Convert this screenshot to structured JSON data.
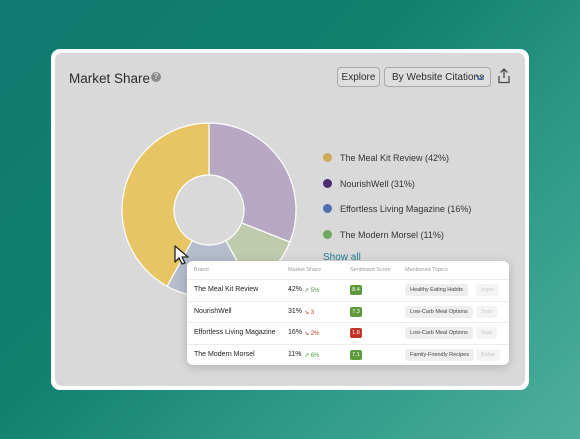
{
  "card": {
    "title": "Market Share",
    "explore_label": "Explore",
    "dropdown_label": "By Website Citations"
  },
  "chart_data": {
    "type": "pie",
    "categories": [
      "The Meal Kit Review",
      "NourishWell",
      "Effortless Living Magazine",
      "The Modern Morsel"
    ],
    "values": [
      42,
      31,
      16,
      11
    ],
    "colors": [
      "#e7c565",
      "#b7a9c4",
      "#b5bccc",
      "#bfcbad"
    ],
    "legend_placement": "right"
  },
  "legend": {
    "items": [
      {
        "label": "The Meal Kit Review (42%)",
        "color": "#cfa955"
      },
      {
        "label": "NourishWell (31%)",
        "color": "#4b2a6e"
      },
      {
        "label": "Effortless Living Magazine (16%)",
        "color": "#4f6fb5"
      },
      {
        "label": "The Modern Morsel (11%)",
        "color": "#6fa85f"
      }
    ],
    "show_all": "Show all"
  },
  "table": {
    "headers": [
      "Brand",
      "Market Share",
      "Sentiment Score",
      "Mentioned Topics"
    ],
    "rows": [
      {
        "brand": "The Meal Kit Review",
        "share": "42%",
        "trend": "5%",
        "trend_dir": "up",
        "score": "8.4",
        "score_color": "#5c9a3b",
        "topic": "Healthy Eating Habits",
        "topic2": "Ingre"
      },
      {
        "brand": "NourishWell",
        "share": "31%",
        "trend": "3",
        "trend_dir": "down",
        "score": "7.3",
        "score_color": "#5c9a3b",
        "topic": "Low-Carb Meal Options",
        "topic2": "Sust"
      },
      {
        "brand": "Effortless Living Magazine",
        "share": "16%",
        "trend": "2%",
        "trend_dir": "down",
        "score": "1.8",
        "score_color": "#c0342b",
        "topic": "Low-Carb Meal Options",
        "topic2": "Sust"
      },
      {
        "brand": "The Modern Morsel",
        "share": "11%",
        "trend": "6%",
        "trend_dir": "up",
        "score": "7.1",
        "score_color": "#5c9a3b",
        "topic": "Family-Friendly Recipes",
        "topic2": "Balan"
      }
    ]
  },
  "icons": {
    "help": "help-icon",
    "share": "share-icon",
    "dropdown": "chevron-down-icon",
    "trend_up": "arrow-up-right-icon",
    "trend_down": "arrow-down-right-icon",
    "cursor": "mouse-pointer-icon"
  }
}
